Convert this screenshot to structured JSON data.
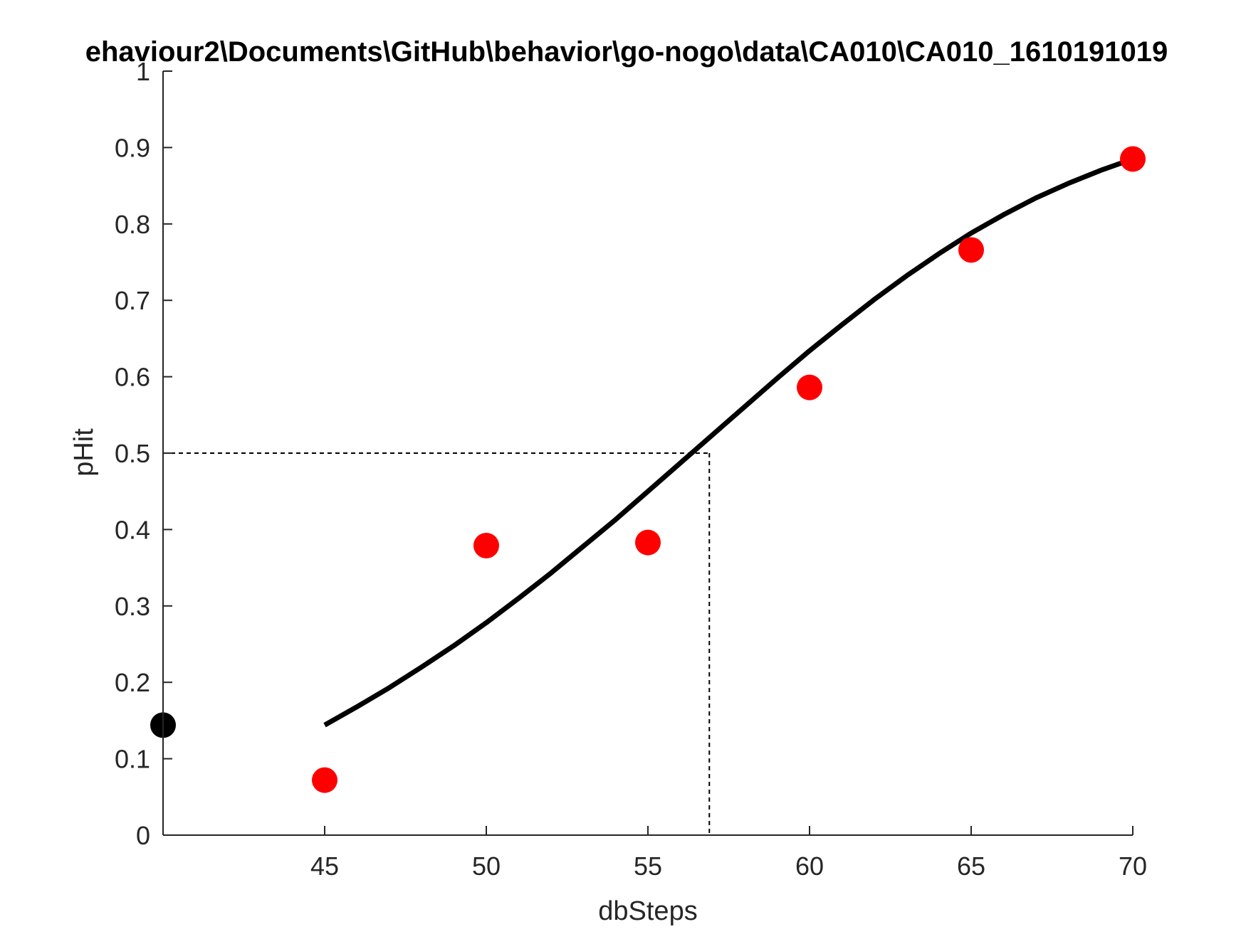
{
  "chart_data": {
    "type": "scatter",
    "title": "ehaviour2\\Documents\\GitHub\\behavior\\go-nogo\\data\\CA010\\CA010_1610191019",
    "xlabel": "dbSteps",
    "ylabel": "pHit",
    "xlim": [
      40,
      70
    ],
    "ylim": [
      0,
      1
    ],
    "x_ticks": [
      45,
      50,
      55,
      60,
      65,
      70
    ],
    "x_tick_labels": [
      "45",
      "50",
      "55",
      "60",
      "65",
      "70"
    ],
    "y_ticks": [
      0,
      0.1,
      0.2,
      0.3,
      0.4,
      0.5,
      0.6,
      0.7,
      0.8,
      0.9,
      1
    ],
    "y_tick_labels": [
      "0",
      "0.1",
      "0.2",
      "0.3",
      "0.4",
      "0.5",
      "0.6",
      "0.7",
      "0.8",
      "0.9",
      "1"
    ],
    "grid": false,
    "series": [
      {
        "type": "scatter",
        "color": "#ff0000",
        "x": [
          45,
          50,
          55,
          60,
          65,
          70
        ],
        "y": [
          0.072,
          0.379,
          0.383,
          0.586,
          0.766,
          0.885
        ]
      },
      {
        "type": "scatter",
        "color": "#000000",
        "x": [
          40
        ],
        "y": [
          0.144
        ]
      },
      {
        "type": "line",
        "color": "#000000",
        "x": [
          45,
          46,
          47,
          48,
          49,
          50,
          51,
          52,
          53,
          54,
          55,
          56,
          57,
          58,
          59,
          60,
          61,
          62,
          63,
          64,
          65,
          66,
          67,
          68,
          69,
          70
        ],
        "y": [
          0.144,
          0.168,
          0.193,
          0.22,
          0.248,
          0.278,
          0.31,
          0.343,
          0.378,
          0.413,
          0.45,
          0.487,
          0.524,
          0.561,
          0.598,
          0.634,
          0.668,
          0.701,
          0.732,
          0.761,
          0.788,
          0.812,
          0.834,
          0.853,
          0.87,
          0.885
        ]
      }
    ],
    "threshold": {
      "x": 56.9,
      "y": 0.5,
      "style": "dashed"
    }
  }
}
